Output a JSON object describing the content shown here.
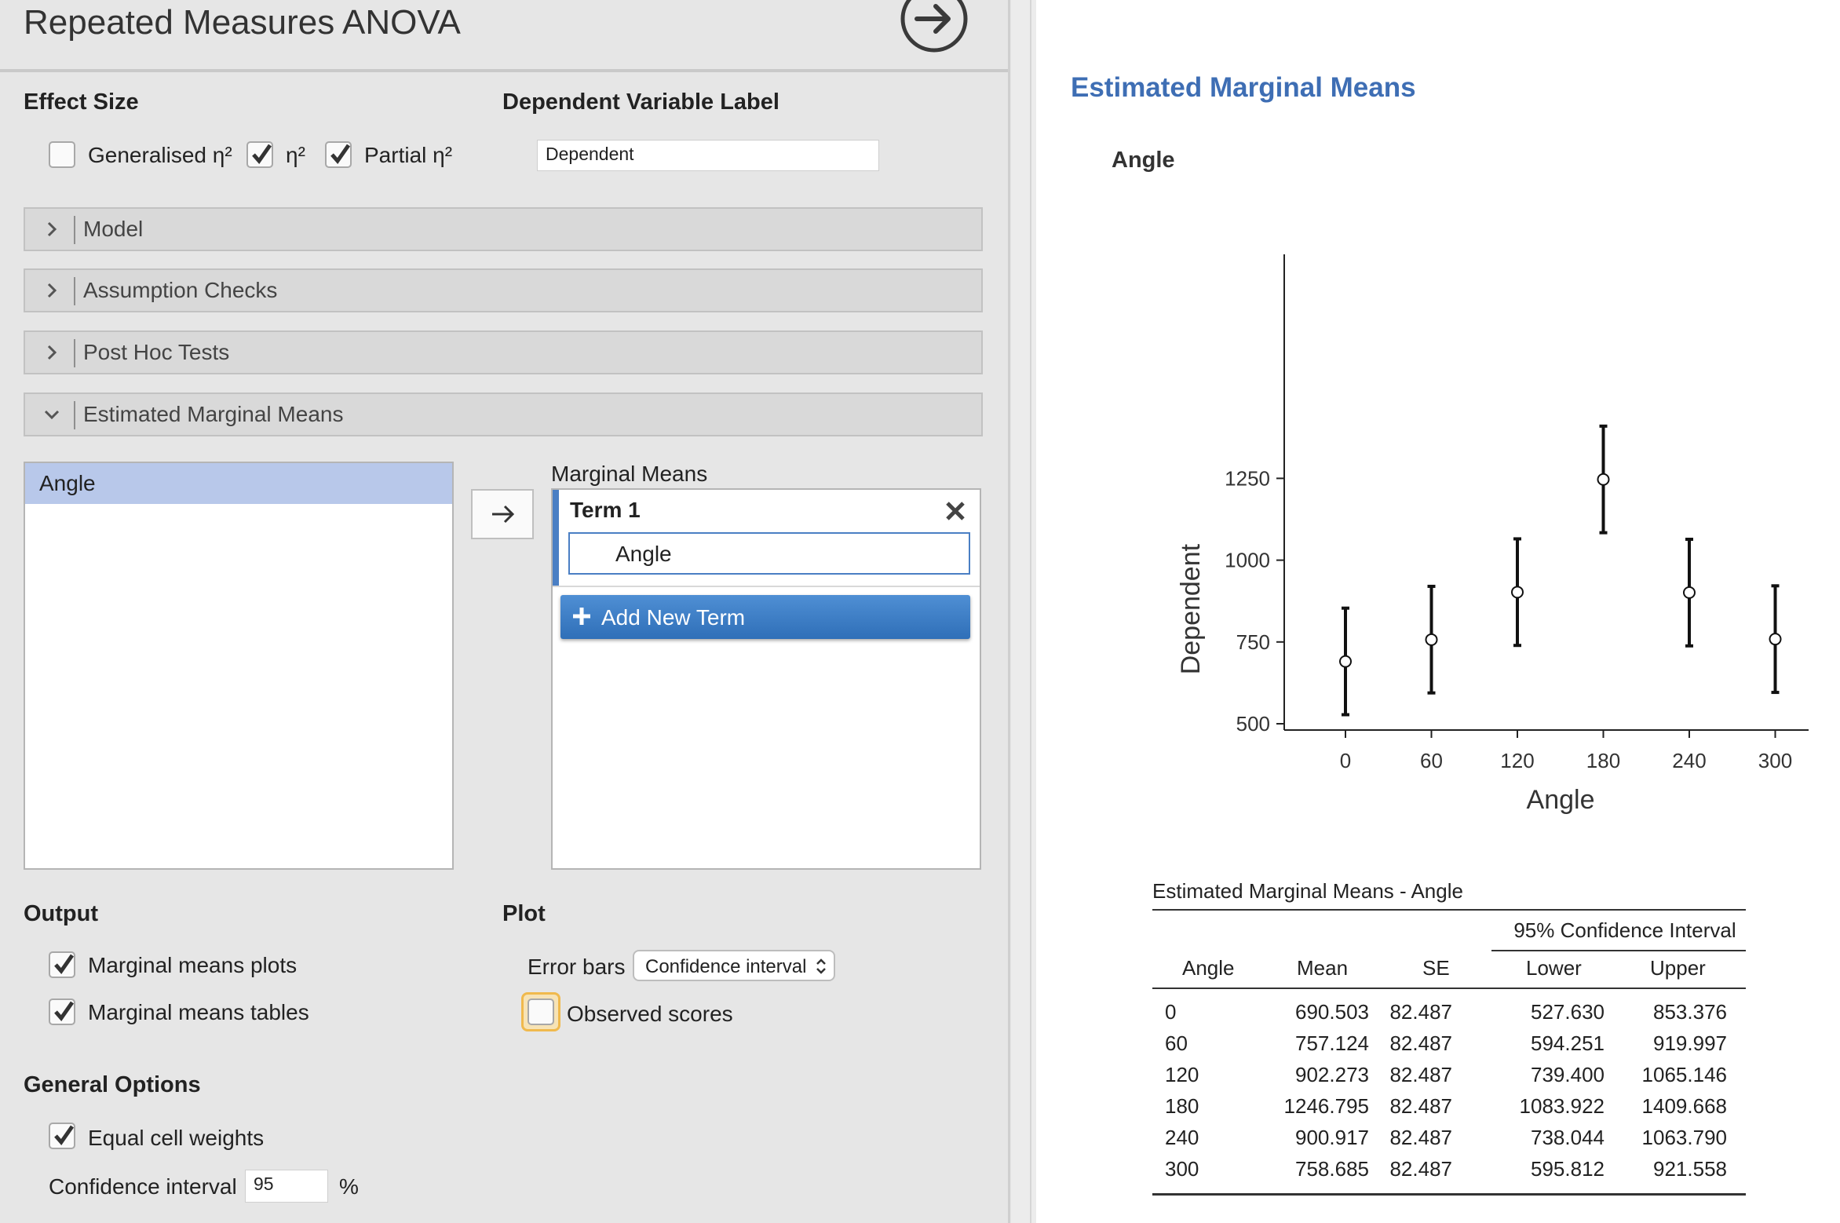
{
  "panel": {
    "title": "Repeated Measures ANOVA",
    "effect_size": {
      "heading": "Effect Size",
      "options": [
        {
          "label": "Generalised η²",
          "checked": false
        },
        {
          "label": "η²",
          "checked": true
        },
        {
          "label": "Partial η²",
          "checked": true
        }
      ]
    },
    "dependent_label": {
      "heading": "Dependent Variable Label",
      "value": "Dependent"
    },
    "sections": [
      {
        "label": "Model",
        "expanded": false
      },
      {
        "label": "Assumption Checks",
        "expanded": false
      },
      {
        "label": "Post Hoc Tests",
        "expanded": false
      },
      {
        "label": "Estimated Marginal Means",
        "expanded": true
      }
    ],
    "emm": {
      "available_items": [
        "Angle"
      ],
      "marginal_means_label": "Marginal Means",
      "term_title": "Term 1",
      "term_item": "Angle",
      "add_term_label": "Add New Term"
    },
    "output": {
      "heading": "Output",
      "options": [
        {
          "label": "Marginal means plots",
          "checked": true
        },
        {
          "label": "Marginal means tables",
          "checked": true
        }
      ]
    },
    "plot": {
      "heading": "Plot",
      "error_bars_label": "Error bars",
      "error_bars_value": "Confidence interval",
      "observed_scores_label": "Observed scores",
      "observed_scores_checked": false
    },
    "general": {
      "heading": "General Options",
      "equal_weights_label": "Equal cell weights",
      "equal_weights_checked": true,
      "ci_label": "Confidence interval",
      "ci_value": "95",
      "ci_unit": "%"
    }
  },
  "results": {
    "title": "Estimated Marginal Means",
    "subtitle": "Angle",
    "table": {
      "title": "Estimated Marginal Means - Angle",
      "ci_header": "95% Confidence Interval",
      "columns": [
        "Angle",
        "Mean",
        "SE",
        "Lower",
        "Upper"
      ],
      "rows": [
        [
          "0",
          "690.503",
          "82.487",
          "527.630",
          "853.376"
        ],
        [
          "60",
          "757.124",
          "82.487",
          "594.251",
          "919.997"
        ],
        [
          "120",
          "902.273",
          "82.487",
          "739.400",
          "1065.146"
        ],
        [
          "180",
          "1246.795",
          "82.487",
          "1083.922",
          "1409.668"
        ],
        [
          "240",
          "900.917",
          "82.487",
          "738.044",
          "1063.790"
        ],
        [
          "300",
          "758.685",
          "82.487",
          "595.812",
          "921.558"
        ]
      ]
    }
  },
  "chart_data": {
    "type": "scatter",
    "xlabel": "Angle",
    "ylabel": "Dependent",
    "categories": [
      "0",
      "60",
      "120",
      "180",
      "240",
      "300"
    ],
    "values": [
      690.503,
      757.124,
      902.273,
      1246.795,
      900.917,
      758.685
    ],
    "lower": [
      527.63,
      594.251,
      739.4,
      1083.922,
      738.044,
      595.812
    ],
    "upper": [
      853.376,
      919.997,
      1065.146,
      1409.668,
      1063.79,
      921.558
    ],
    "yticks": [
      500,
      750,
      1000,
      1250
    ],
    "ylim": [
      500,
      1450
    ],
    "grid": false
  }
}
